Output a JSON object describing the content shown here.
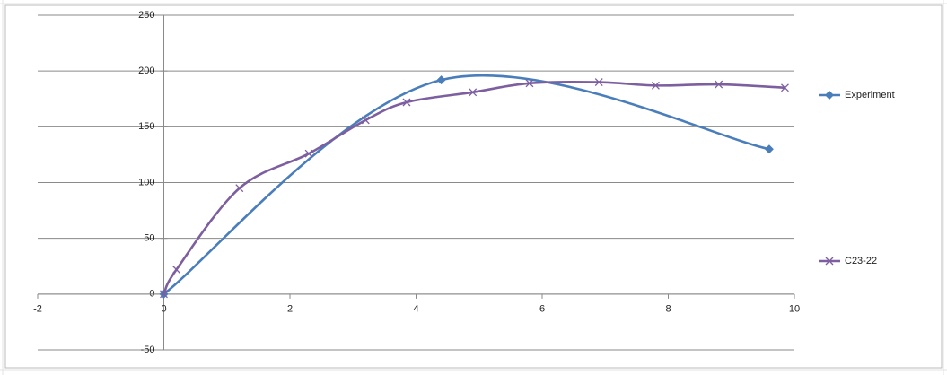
{
  "chart_data": {
    "type": "scatter-smooth",
    "xlim": [
      -2,
      10
    ],
    "xticks": [
      -2,
      0,
      2,
      4,
      6,
      8,
      10
    ],
    "ylim": [
      -50,
      250
    ],
    "yticks": [
      -50,
      0,
      50,
      100,
      150,
      200,
      250
    ],
    "grid": true,
    "legend": "right",
    "series": [
      {
        "name": "Experiment",
        "color": "#4a7ebb",
        "marker": "diamond",
        "x": [
          0,
          4.4,
          9.6
        ],
        "y": [
          0,
          192,
          130
        ]
      },
      {
        "name": "C23-22",
        "color": "#7d5fa0",
        "marker": "x",
        "x": [
          0,
          0.2,
          1.2,
          2.3,
          3.2,
          3.85,
          4.9,
          5.8,
          6.9,
          7.8,
          8.8,
          9.85
        ],
        "y": [
          0,
          22,
          95,
          126,
          156,
          172,
          181,
          189,
          190,
          187,
          188,
          185
        ]
      }
    ]
  }
}
